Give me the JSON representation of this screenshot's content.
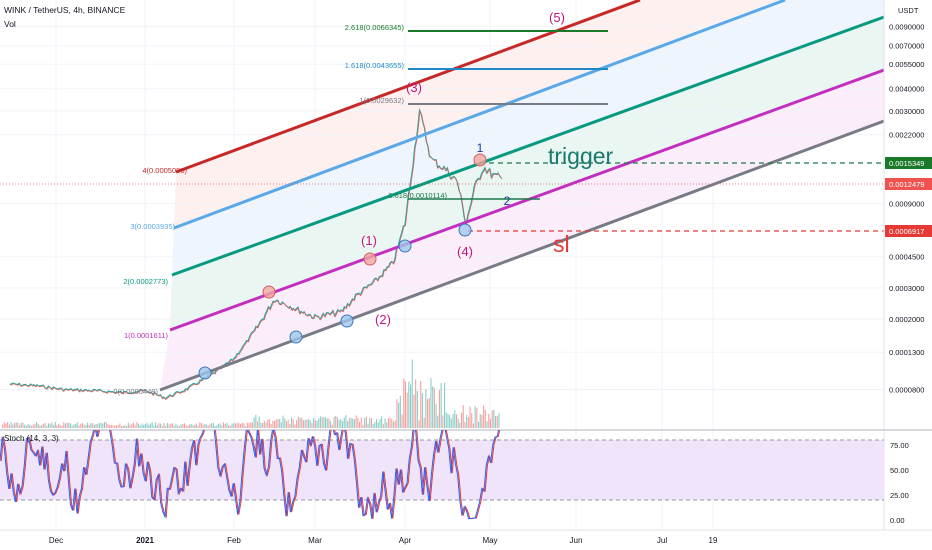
{
  "header": {
    "symbol": "WINK / TetherUS, 4h, BINANCE",
    "volume_label": "Vol",
    "currency": "USDT"
  },
  "colors": {
    "candle_up": "#26a69a",
    "candle_down": "#ef5350",
    "fib_0": "#787b86",
    "fib_1": "#c22ebf",
    "fib_2": "#089981",
    "fib_3": "#5ba8e8",
    "fib_4": "#c62828",
    "trigger": "#1b7a4a",
    "sl": "#e53935",
    "wave_label": "#c2187f",
    "stoch_k": "#2962ff",
    "stoch_d": "#e53935",
    "stoch_band": "#e9dcf7"
  },
  "chart_data": {
    "type": "line",
    "yaxis": {
      "scale": "log",
      "ticks": [
        "0.0090000",
        "0.0070000",
        "0.0055000",
        "0.0040000",
        "0.0030000",
        "0.0022000",
        "0.0015349",
        "0.0012479",
        "0.0009000",
        "0.0006917",
        "0.0004500",
        "0.0003000",
        "0.0002000",
        "0.0001300",
        "0.0000800",
        "0.0000400",
        "0.0000100"
      ]
    },
    "xaxis": {
      "ticks": [
        "Dec",
        "2021",
        "Feb",
        "Mar",
        "Apr",
        "May",
        "Jun",
        "Jul",
        "19"
      ]
    },
    "price_series": {
      "name": "WINK / TetherUS",
      "points": [
        [
          "Nov 15",
          8.6e-05
        ],
        [
          "Nov 25",
          8.4e-05
        ],
        [
          "Dec 5",
          8e-05
        ],
        [
          "Dec 15",
          7.9e-05
        ],
        [
          "Dec 25",
          7.7e-05
        ],
        [
          "Jan 1",
          7.9e-05
        ],
        [
          "Jan 8",
          7.2e-05
        ],
        [
          "Jan 15",
          8e-05
        ],
        [
          "Jan 25",
          0.0001
        ],
        [
          "Feb 1",
          0.00012
        ],
        [
          "Feb 8",
          0.00017
        ],
        [
          "Feb 15",
          0.00026
        ],
        [
          "Feb 22",
          0.00023
        ],
        [
          "Mar 1",
          0.000205
        ],
        [
          "Mar 10",
          0.00022
        ],
        [
          "Mar 15",
          0.00027
        ],
        [
          "Mar 22",
          0.00033
        ],
        [
          "Mar 28",
          0.00042
        ],
        [
          "Apr 1",
          0.0007
        ],
        [
          "Apr 6",
          0.003
        ],
        [
          "Apr 10",
          0.0016
        ],
        [
          "Apr 15",
          0.0014
        ],
        [
          "Apr 19",
          0.0012
        ],
        [
          "Apr 22",
          0.0007
        ],
        [
          "Apr 25",
          0.0011
        ],
        [
          "Apr 28",
          0.00145
        ],
        [
          "May 2",
          0.0013
        ],
        [
          "May 5",
          0.0012479
        ]
      ]
    },
    "fib_channel": [
      {
        "level": "0",
        "label": "0(0.0000449)"
      },
      {
        "level": "1",
        "label": "1(0.0001611)"
      },
      {
        "level": "2",
        "label": "2(0.0002773)"
      },
      {
        "level": "3",
        "label": "3(0.0003935)"
      },
      {
        "level": "4",
        "label": "4(0.0005096)"
      }
    ],
    "fib_extension": [
      {
        "level": "0.618",
        "label": "0.618(0.0010114)"
      },
      {
        "level": "1",
        "label": "1(0.0029632)"
      },
      {
        "level": "1.618",
        "label": "1.618(0.0043655)"
      },
      {
        "level": "2.618",
        "label": "2.618(0.0066345)"
      }
    ],
    "wave_labels": [
      "(1)",
      "(2)",
      "(3)",
      "(4)",
      "(5)"
    ],
    "point_labels": [
      "1",
      "2"
    ],
    "annotations": {
      "trigger": "trigger",
      "stop_loss": "sl",
      "trigger_price": "0.0015349",
      "current_price": "0.0012479",
      "sl_price": "0.0006917"
    },
    "stochastic": {
      "label": "Stoch (14, 3, 3)",
      "ticks": [
        "75.00",
        "50.00",
        "25.00",
        "0.00"
      ],
      "upper_band": 80,
      "lower_band": 20
    }
  }
}
